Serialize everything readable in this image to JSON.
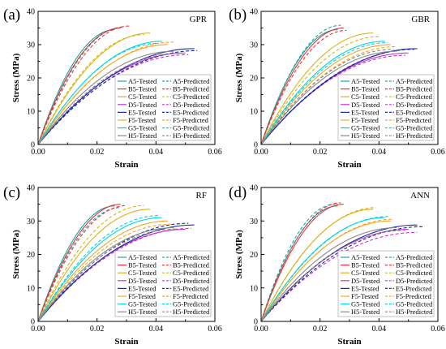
{
  "chart_data": {
    "type": "line",
    "xlabel": "Strain",
    "ylabel": "Stress (MPa)",
    "xlim": [
      0,
      0.06
    ],
    "ylim": [
      0,
      40
    ],
    "xticks": [
      0.0,
      0.02,
      0.04,
      0.06
    ],
    "xtick_labels": [
      "0.00",
      "0.02",
      "0.04",
      "0.06"
    ],
    "yticks": [
      0,
      10,
      20,
      30,
      40
    ],
    "ytick_labels": [
      "0",
      "10",
      "20",
      "30",
      "40"
    ],
    "grid": false,
    "legend_position": "lower-right",
    "specimens": [
      {
        "id": "A5",
        "color": "#1aa6a6",
        "peak_stress": 34.5,
        "peak_strain": 0.026
      },
      {
        "id": "B5",
        "color": "#e8343a",
        "peak_stress": 35.0,
        "peak_strain": 0.028
      },
      {
        "id": "C5",
        "color": "#d9b31a",
        "peak_stress": 33.5,
        "peak_strain": 0.038
      },
      {
        "id": "D5",
        "color": "#cc33cc",
        "peak_stress": 27.5,
        "peak_strain": 0.05
      },
      {
        "id": "E5",
        "color": "#1a2a99",
        "peak_stress": 28.8,
        "peak_strain": 0.053
      },
      {
        "id": "F5",
        "color": "#f5a623",
        "peak_stress": 30.0,
        "peak_strain": 0.044
      },
      {
        "id": "G5",
        "color": "#00d2e0",
        "peak_stress": 31.0,
        "peak_strain": 0.042
      },
      {
        "id": "H5",
        "color": "#888888",
        "peak_stress": 28.0,
        "peak_strain": 0.046
      }
    ],
    "legend_tested": [
      "A5-Tested",
      "B5-Tested",
      "C5-Tested",
      "D5-Tested",
      "E5-Tested",
      "F5-Tested",
      "G5-Tested",
      "H5-Tested"
    ],
    "legend_predicted": [
      "A5-Predicted",
      "B5-Predicted",
      "C5-Predicted",
      "D5-Predicted",
      "E5-Predicted",
      "F5-Predicted",
      "G5-Predicted",
      "H5-Predicted"
    ],
    "panels": [
      {
        "letter": "(a)",
        "model": "GPR",
        "predicted": [
          {
            "peak_stress": 35.3,
            "peak_strain": 0.029
          },
          {
            "peak_stress": 35.6,
            "peak_strain": 0.031
          },
          {
            "peak_stress": 33.0,
            "peak_strain": 0.036
          },
          {
            "peak_stress": 27.0,
            "peak_strain": 0.051
          },
          {
            "peak_stress": 28.2,
            "peak_strain": 0.054
          },
          {
            "peak_stress": 30.8,
            "peak_strain": 0.046
          },
          {
            "peak_stress": 30.4,
            "peak_strain": 0.041
          },
          {
            "peak_stress": 27.4,
            "peak_strain": 0.048
          }
        ]
      },
      {
        "letter": "(b)",
        "model": "GBR",
        "predicted": [
          {
            "peak_stress": 35.8,
            "peak_strain": 0.027
          },
          {
            "peak_stress": 34.3,
            "peak_strain": 0.029
          },
          {
            "peak_stress": 32.4,
            "peak_strain": 0.04
          },
          {
            "peak_stress": 26.8,
            "peak_strain": 0.049
          },
          {
            "peak_stress": 28.6,
            "peak_strain": 0.052
          },
          {
            "peak_stress": 29.4,
            "peak_strain": 0.046
          },
          {
            "peak_stress": 30.6,
            "peak_strain": 0.043
          },
          {
            "peak_stress": 28.6,
            "peak_strain": 0.045
          }
        ]
      },
      {
        "letter": "(c)",
        "model": "RF",
        "predicted": [
          {
            "peak_stress": 34.0,
            "peak_strain": 0.028
          },
          {
            "peak_stress": 34.6,
            "peak_strain": 0.03
          },
          {
            "peak_stress": 34.6,
            "peak_strain": 0.036
          },
          {
            "peak_stress": 27.8,
            "peak_strain": 0.052
          },
          {
            "peak_stress": 29.3,
            "peak_strain": 0.051
          },
          {
            "peak_stress": 29.0,
            "peak_strain": 0.045
          },
          {
            "peak_stress": 31.6,
            "peak_strain": 0.041
          },
          {
            "peak_stress": 27.6,
            "peak_strain": 0.047
          }
        ]
      },
      {
        "letter": "(d)",
        "model": "ANN",
        "predicted": [
          {
            "peak_stress": 35.0,
            "peak_strain": 0.025
          },
          {
            "peak_stress": 35.4,
            "peak_strain": 0.027
          },
          {
            "peak_stress": 34.0,
            "peak_strain": 0.039
          },
          {
            "peak_stress": 26.6,
            "peak_strain": 0.053
          },
          {
            "peak_stress": 28.3,
            "peak_strain": 0.055
          },
          {
            "peak_stress": 30.5,
            "peak_strain": 0.045
          },
          {
            "peak_stress": 31.3,
            "peak_strain": 0.043
          },
          {
            "peak_stress": 27.2,
            "peak_strain": 0.049
          }
        ]
      }
    ]
  }
}
